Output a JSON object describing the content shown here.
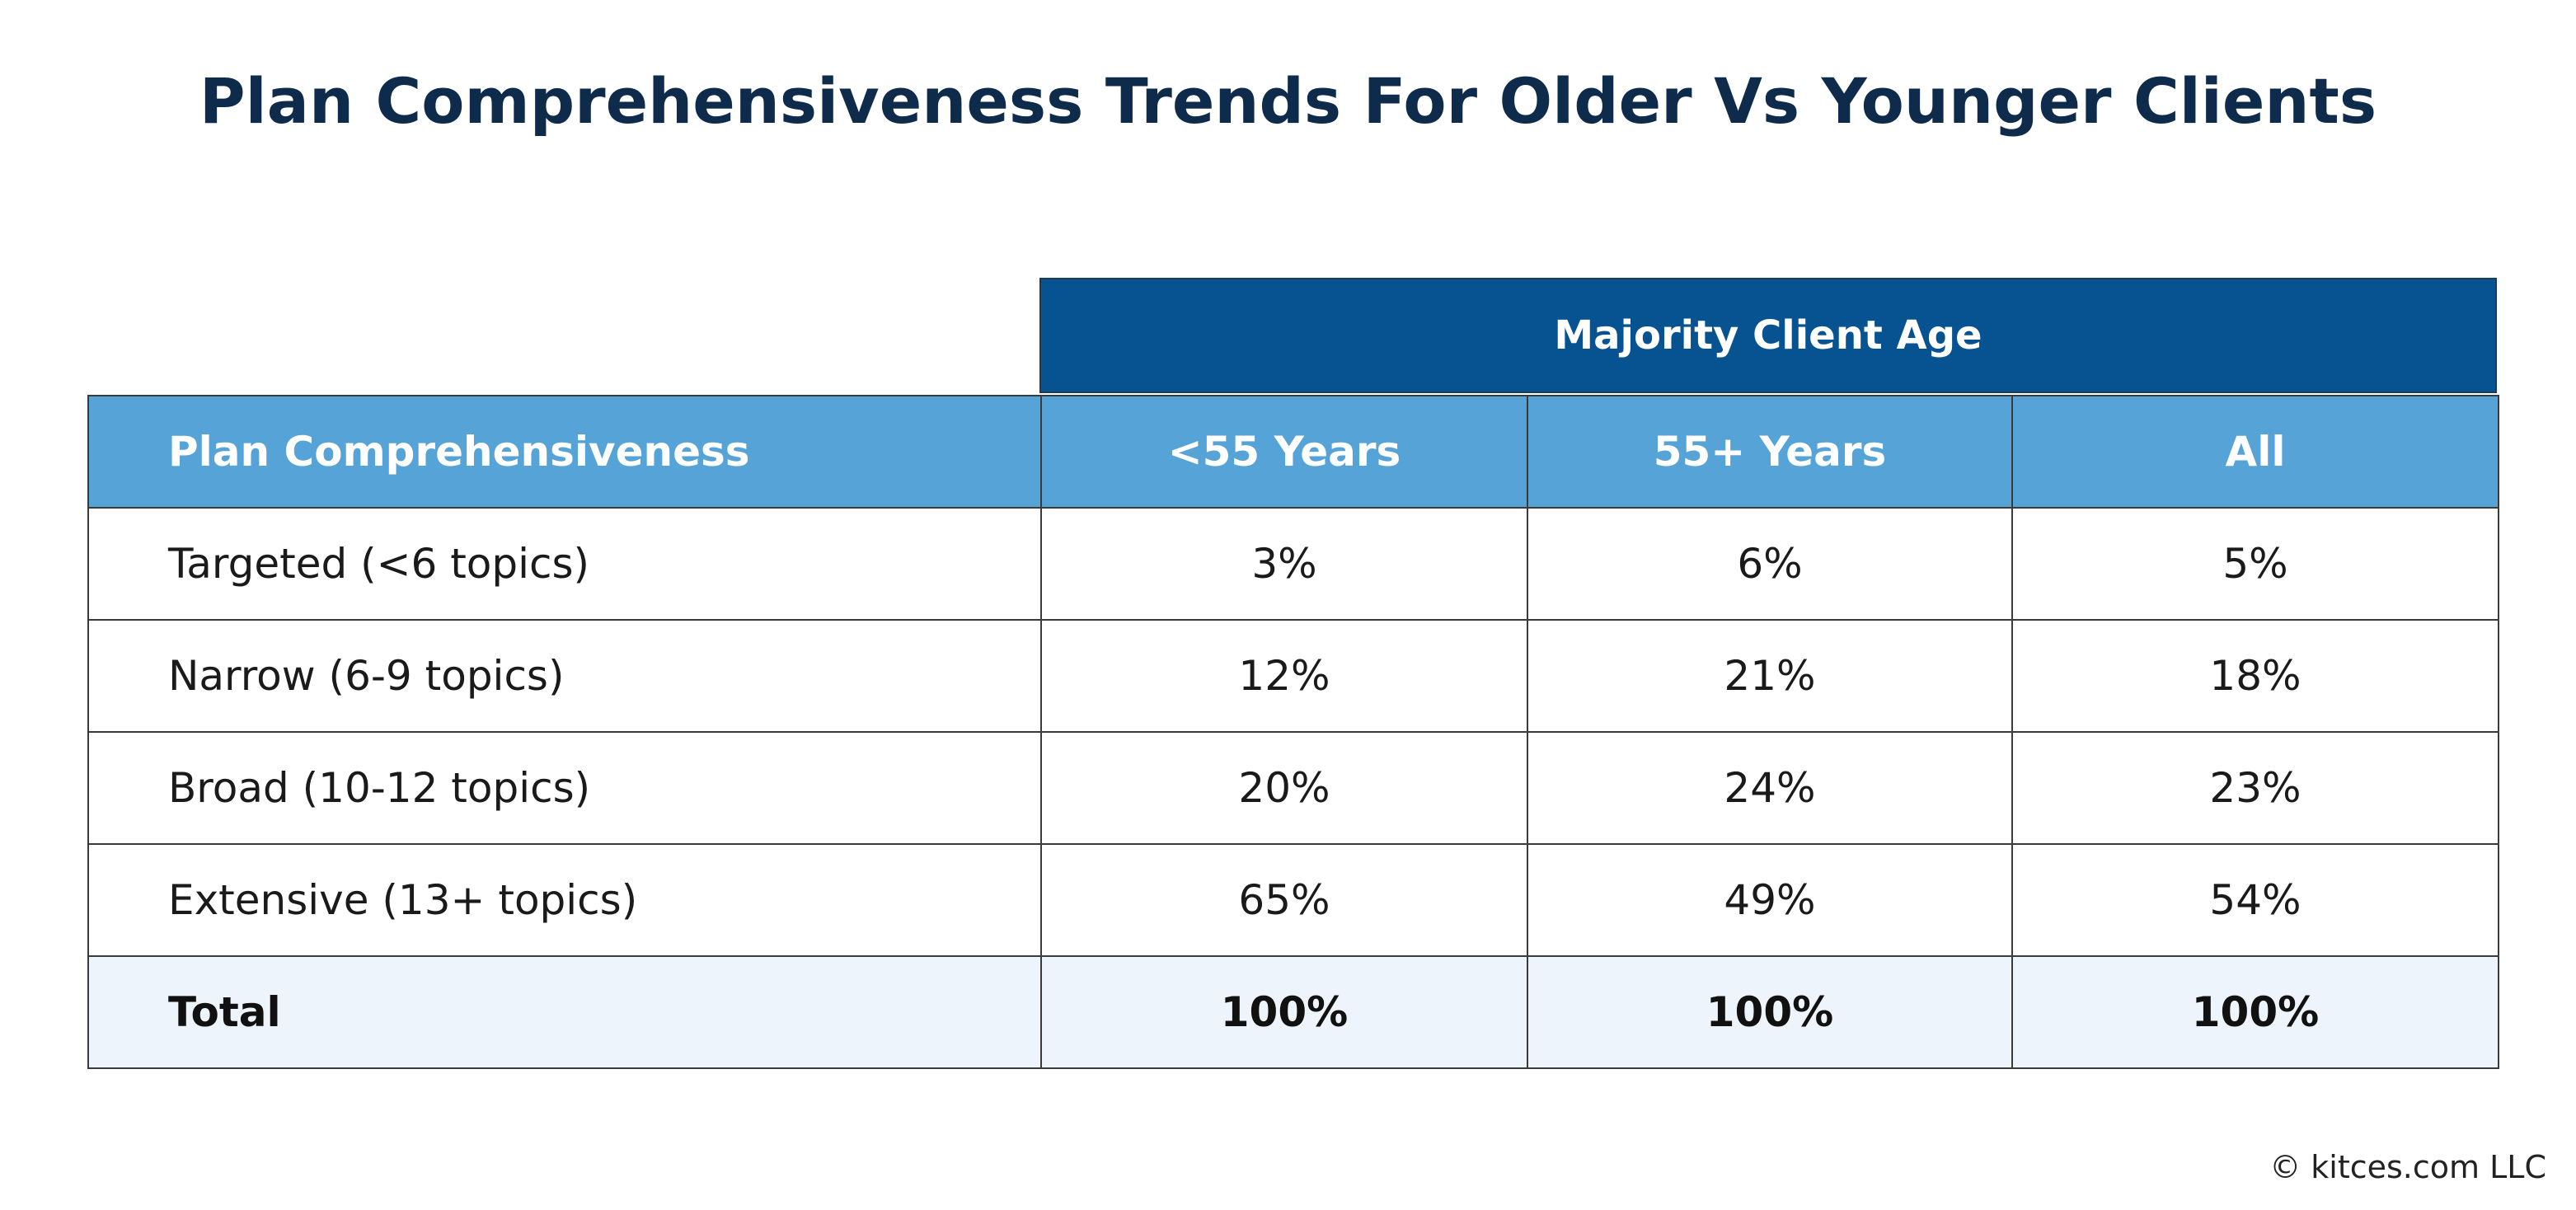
{
  "title": "Plan Comprehensiveness Trends For Older Vs Younger Clients",
  "super_header": "Majority Client Age",
  "columns": [
    "Plan Comprehensiveness",
    "<55 Years",
    "55+ Years",
    "All"
  ],
  "rows": [
    {
      "label": "Targeted (<6 topics)",
      "values": [
        "3%",
        "6%",
        "5%"
      ]
    },
    {
      "label": "Narrow (6-9 topics)",
      "values": [
        "12%",
        "21%",
        "18%"
      ]
    },
    {
      "label": "Broad (10-12 topics)",
      "values": [
        "20%",
        "24%",
        "23%"
      ]
    },
    {
      "label": "Extensive (13+ topics)",
      "values": [
        "65%",
        "49%",
        "54%"
      ]
    },
    {
      "label": "Total",
      "values": [
        "100%",
        "100%",
        "100%"
      ]
    }
  ],
  "copyright": "© kitces.com LLC",
  "colors": {
    "title": "#0f2b4b",
    "super_header_bg": "#075391",
    "header_bg": "#56a3d8",
    "total_row_bg": "#edf4fb",
    "border": "#3a3a3a"
  },
  "chart_data": {
    "type": "table",
    "title": "Plan Comprehensiveness Trends For Older Vs Younger Clients",
    "column_group": "Majority Client Age",
    "row_header": "Plan Comprehensiveness",
    "categories": [
      "Targeted (<6 topics)",
      "Narrow (6-9 topics)",
      "Broad (10-12 topics)",
      "Extensive (13+ topics)",
      "Total"
    ],
    "series": [
      {
        "name": "<55 Years",
        "values": [
          3,
          12,
          20,
          65,
          100
        ]
      },
      {
        "name": "55+ Years",
        "values": [
          6,
          21,
          24,
          49,
          100
        ]
      },
      {
        "name": "All",
        "values": [
          5,
          18,
          23,
          54,
          100
        ]
      }
    ],
    "unit": "%"
  }
}
